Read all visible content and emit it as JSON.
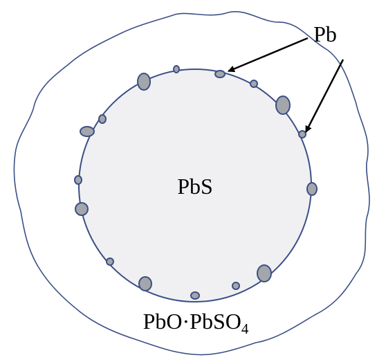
{
  "labels": {
    "pb": "Pb",
    "core": "PbS",
    "shell": {
      "main": "PbO·PbSO",
      "sub": "4"
    }
  }
}
